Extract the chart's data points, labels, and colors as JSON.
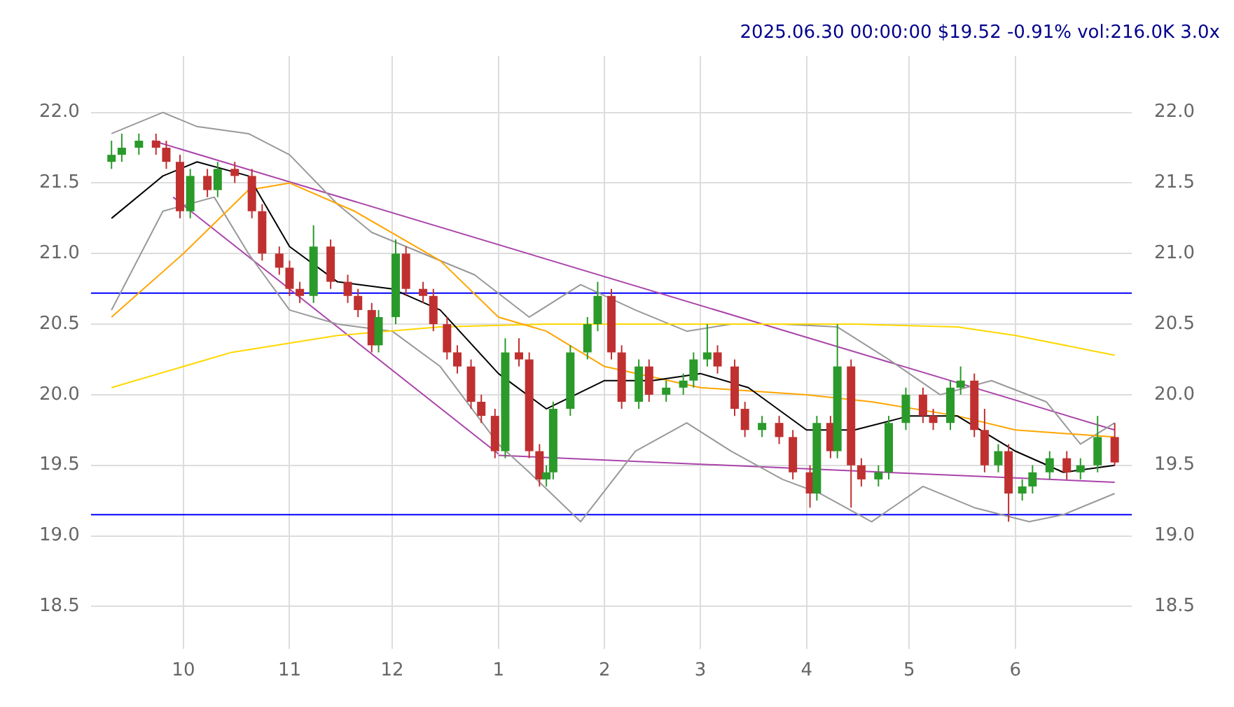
{
  "chart_data": {
    "type": "candlestick",
    "title": "2025.06.30 00:00:00 $19.52 -0.91% vol:216.0K 3.0x",
    "x": [
      "2024-09-10",
      "2024-09-13",
      "2024-09-18",
      "2024-09-23",
      "2024-09-26",
      "2024-09-30",
      "2024-10-03",
      "2024-10-08",
      "2024-10-11",
      "2024-10-16",
      "2024-10-21",
      "2024-10-24",
      "2024-10-29",
      "2024-11-01",
      "2024-11-04",
      "2024-11-08",
      "2024-11-13",
      "2024-11-18",
      "2024-11-21",
      "2024-11-25",
      "2024-11-27",
      "2024-12-02",
      "2024-12-05",
      "2024-12-10",
      "2024-12-13",
      "2024-12-17",
      "2024-12-20",
      "2024-12-24",
      "2024-12-27",
      "2024-12-31",
      "2025-01-03",
      "2025-01-07",
      "2025-01-10",
      "2025-01-13",
      "2025-01-15",
      "2025-01-17",
      "2025-01-22",
      "2025-01-27",
      "2025-01-30",
      "2025-02-03",
      "2025-02-06",
      "2025-02-11",
      "2025-02-14",
      "2025-02-19",
      "2025-02-24",
      "2025-02-27",
      "2025-03-03",
      "2025-03-06",
      "2025-03-11",
      "2025-03-14",
      "2025-03-19",
      "2025-03-24",
      "2025-03-28",
      "2025-04-02",
      "2025-04-04",
      "2025-04-08",
      "2025-04-10",
      "2025-04-14",
      "2025-04-17",
      "2025-04-22",
      "2025-04-25",
      "2025-04-30",
      "2025-05-05",
      "2025-05-08",
      "2025-05-13",
      "2025-05-16",
      "2025-05-20",
      "2025-05-23",
      "2025-05-27",
      "2025-05-30",
      "2025-06-03",
      "2025-06-06",
      "2025-06-11",
      "2025-06-16",
      "2025-06-20",
      "2025-06-25",
      "2025-06-30"
    ],
    "ohlc": [
      [
        21.65,
        21.8,
        21.6,
        21.7
      ],
      [
        21.7,
        21.85,
        21.65,
        21.75
      ],
      [
        21.75,
        21.85,
        21.7,
        21.8
      ],
      [
        21.8,
        21.85,
        21.7,
        21.75
      ],
      [
        21.75,
        21.8,
        21.6,
        21.65
      ],
      [
        21.65,
        21.7,
        21.25,
        21.3
      ],
      [
        21.3,
        21.6,
        21.25,
        21.55
      ],
      [
        21.55,
        21.6,
        21.4,
        21.45
      ],
      [
        21.45,
        21.65,
        21.4,
        21.6
      ],
      [
        21.6,
        21.65,
        21.5,
        21.55
      ],
      [
        21.55,
        21.6,
        21.25,
        21.3
      ],
      [
        21.3,
        21.35,
        20.95,
        21.0
      ],
      [
        21.0,
        21.05,
        20.85,
        20.9
      ],
      [
        20.9,
        20.95,
        20.7,
        20.75
      ],
      [
        20.75,
        20.8,
        20.65,
        20.7
      ],
      [
        20.7,
        21.2,
        20.65,
        21.05
      ],
      [
        21.05,
        21.1,
        20.75,
        20.8
      ],
      [
        20.8,
        20.85,
        20.65,
        20.7
      ],
      [
        20.7,
        20.75,
        20.55,
        20.6
      ],
      [
        20.6,
        20.65,
        20.3,
        20.35
      ],
      [
        20.35,
        20.6,
        20.3,
        20.55
      ],
      [
        20.55,
        21.1,
        20.5,
        21.0
      ],
      [
        21.0,
        21.05,
        20.7,
        20.75
      ],
      [
        20.75,
        20.8,
        20.65,
        20.7
      ],
      [
        20.7,
        20.75,
        20.45,
        20.5
      ],
      [
        20.5,
        20.55,
        20.25,
        20.3
      ],
      [
        20.3,
        20.35,
        20.15,
        20.2
      ],
      [
        20.2,
        20.25,
        19.9,
        19.95
      ],
      [
        19.95,
        20.0,
        19.8,
        19.85
      ],
      [
        19.85,
        19.9,
        19.55,
        19.6
      ],
      [
        19.6,
        20.4,
        19.55,
        20.3
      ],
      [
        20.3,
        20.4,
        20.2,
        20.25
      ],
      [
        20.25,
        20.3,
        19.55,
        19.6
      ],
      [
        19.6,
        19.65,
        19.35,
        19.4
      ],
      [
        19.4,
        19.5,
        19.35,
        19.45
      ],
      [
        19.45,
        19.95,
        19.4,
        19.9
      ],
      [
        19.9,
        20.35,
        19.85,
        20.3
      ],
      [
        20.3,
        20.55,
        20.25,
        20.5
      ],
      [
        20.5,
        20.8,
        20.45,
        20.7
      ],
      [
        20.7,
        20.75,
        20.25,
        20.3
      ],
      [
        20.3,
        20.35,
        19.9,
        19.95
      ],
      [
        19.95,
        20.25,
        19.9,
        20.2
      ],
      [
        20.2,
        20.25,
        19.95,
        20.0
      ],
      [
        20.0,
        20.1,
        19.95,
        20.05
      ],
      [
        20.05,
        20.15,
        20.0,
        20.1
      ],
      [
        20.1,
        20.3,
        20.05,
        20.25
      ],
      [
        20.25,
        20.5,
        20.2,
        20.3
      ],
      [
        20.3,
        20.35,
        20.15,
        20.2
      ],
      [
        20.2,
        20.25,
        19.85,
        19.9
      ],
      [
        19.9,
        19.95,
        19.7,
        19.75
      ],
      [
        19.75,
        19.85,
        19.7,
        19.8
      ],
      [
        19.8,
        19.85,
        19.65,
        19.7
      ],
      [
        19.7,
        19.75,
        19.4,
        19.45
      ],
      [
        19.45,
        19.5,
        19.2,
        19.3
      ],
      [
        19.3,
        19.85,
        19.25,
        19.8
      ],
      [
        19.8,
        19.85,
        19.55,
        19.6
      ],
      [
        19.6,
        20.5,
        19.55,
        20.2
      ],
      [
        20.2,
        20.25,
        19.2,
        19.5
      ],
      [
        19.5,
        19.55,
        19.35,
        19.4
      ],
      [
        19.4,
        19.5,
        19.35,
        19.45
      ],
      [
        19.45,
        19.85,
        19.4,
        19.8
      ],
      [
        19.8,
        20.05,
        19.75,
        20.0
      ],
      [
        20.0,
        20.05,
        19.8,
        19.85
      ],
      [
        19.85,
        19.9,
        19.75,
        19.8
      ],
      [
        19.8,
        20.1,
        19.75,
        20.05
      ],
      [
        20.05,
        20.2,
        20.0,
        20.1
      ],
      [
        20.1,
        20.15,
        19.7,
        19.75
      ],
      [
        19.75,
        19.9,
        19.45,
        19.5
      ],
      [
        19.5,
        19.65,
        19.45,
        19.6
      ],
      [
        19.6,
        19.65,
        19.1,
        19.3
      ],
      [
        19.3,
        19.4,
        19.25,
        19.35
      ],
      [
        19.35,
        19.5,
        19.3,
        19.45
      ],
      [
        19.45,
        19.6,
        19.4,
        19.55
      ],
      [
        19.55,
        19.6,
        19.4,
        19.45
      ],
      [
        19.45,
        19.55,
        19.4,
        19.5
      ],
      [
        19.5,
        19.85,
        19.45,
        19.7
      ],
      [
        19.7,
        19.8,
        19.5,
        19.52
      ]
    ],
    "colors": [
      "#2a9a2a",
      "#2a9a2a",
      "#2a9a2a",
      "#c03030",
      "#c03030",
      "#c03030",
      "#2a9a2a",
      "#c03030",
      "#2a9a2a",
      "#c03030",
      "#c03030",
      "#c03030",
      "#c03030",
      "#c03030",
      "#c03030",
      "#2a9a2a",
      "#c03030",
      "#c03030",
      "#c03030",
      "#c03030",
      "#2a9a2a",
      "#2a9a2a",
      "#c03030",
      "#c03030",
      "#c03030",
      "#c03030",
      "#c03030",
      "#c03030",
      "#c03030",
      "#c03030",
      "#2a9a2a",
      "#c03030",
      "#c03030",
      "#c03030",
      "#2a9a2a",
      "#2a9a2a",
      "#2a9a2a",
      "#2a9a2a",
      "#2a9a2a",
      "#c03030",
      "#c03030",
      "#2a9a2a",
      "#c03030",
      "#2a9a2a",
      "#2a9a2a",
      "#2a9a2a",
      "#2a9a2a",
      "#c03030",
      "#c03030",
      "#c03030",
      "#2a9a2a",
      "#c03030",
      "#c03030",
      "#c03030",
      "#2a9a2a",
      "#c03030",
      "#2a9a2a",
      "#c03030",
      "#c03030",
      "#2a9a2a",
      "#2a9a2a",
      "#2a9a2a",
      "#c03030",
      "#c03030",
      "#2a9a2a",
      "#2a9a2a",
      "#c03030",
      "#c03030",
      "#2a9a2a",
      "#c03030",
      "#2a9a2a",
      "#2a9a2a",
      "#2a9a2a",
      "#c03030",
      "#2a9a2a",
      "#2a9a2a",
      "#c03030"
    ],
    "series": [
      {
        "type": "line",
        "color": "#000000",
        "x": [
          "2024-09-10",
          "2024-09-25",
          "2024-10-05",
          "2024-10-20",
          "2024-11-01",
          "2024-11-15",
          "2024-12-01",
          "2024-12-15",
          "2025-01-01",
          "2025-01-15",
          "2025-02-01",
          "2025-02-15",
          "2025-03-01",
          "2025-03-15",
          "2025-04-01",
          "2025-04-15",
          "2025-05-01",
          "2025-05-15",
          "2025-06-01",
          "2025-06-15",
          "2025-06-30"
        ],
        "values": [
          21.25,
          21.55,
          21.65,
          21.55,
          21.05,
          20.8,
          20.75,
          20.6,
          20.15,
          19.9,
          20.1,
          20.1,
          20.15,
          20.05,
          19.75,
          19.75,
          19.85,
          19.85,
          19.6,
          19.45,
          19.5
        ]
      },
      {
        "type": "line",
        "color": "#ffa500",
        "x": [
          "2024-09-10",
          "2024-10-01",
          "2024-10-20",
          "2024-11-01",
          "2024-11-20",
          "2024-12-15",
          "2025-01-01",
          "2025-01-15",
          "2025-02-01",
          "2025-03-01",
          "2025-04-01",
          "2025-04-20",
          "2025-05-15",
          "2025-06-01",
          "2025-06-30"
        ],
        "values": [
          20.55,
          21.0,
          21.45,
          21.5,
          21.3,
          20.95,
          20.55,
          20.45,
          20.2,
          20.05,
          20.0,
          19.95,
          19.85,
          19.75,
          19.7
        ]
      },
      {
        "type": "line",
        "color": "#ffd700",
        "x": [
          "2024-09-10",
          "2024-10-15",
          "2024-11-15",
          "2024-12-15",
          "2025-01-15",
          "2025-03-01",
          "2025-04-15",
          "2025-05-15",
          "2025-06-01",
          "2025-06-30"
        ],
        "values": [
          20.05,
          20.3,
          20.42,
          20.48,
          20.5,
          20.5,
          20.5,
          20.48,
          20.42,
          20.28
        ]
      },
      {
        "type": "line",
        "color": "#999999",
        "x": [
          "2024-09-10",
          "2024-09-25",
          "2024-10-05",
          "2024-10-20",
          "2024-11-01",
          "2024-11-15",
          "2024-11-25",
          "2024-12-10",
          "2024-12-25",
          "2025-01-10",
          "2025-01-25",
          "2025-02-10",
          "2025-02-25",
          "2025-03-10",
          "2025-03-25",
          "2025-04-10",
          "2025-04-25",
          "2025-05-10",
          "2025-05-25",
          "2025-06-10",
          "2025-06-20",
          "2025-06-30"
        ],
        "values": [
          21.85,
          22.0,
          21.9,
          21.85,
          21.7,
          21.35,
          21.15,
          21.0,
          20.85,
          20.55,
          20.78,
          20.6,
          20.45,
          20.5,
          20.5,
          20.48,
          20.25,
          20.0,
          20.1,
          19.95,
          19.65,
          19.8
        ]
      },
      {
        "type": "line",
        "color": "#999999",
        "x": [
          "2024-09-10",
          "2024-09-25",
          "2024-10-10",
          "2024-10-20",
          "2024-11-01",
          "2024-11-15",
          "2024-12-01",
          "2024-12-15",
          "2025-01-01",
          "2025-01-10",
          "2025-01-25",
          "2025-02-10",
          "2025-02-25",
          "2025-03-10",
          "2025-03-25",
          "2025-04-05",
          "2025-04-20",
          "2025-05-05",
          "2025-05-20",
          "2025-06-05",
          "2025-06-15",
          "2025-06-30"
        ],
        "values": [
          20.6,
          21.3,
          21.4,
          21.0,
          20.6,
          20.5,
          20.45,
          20.2,
          19.65,
          19.45,
          19.1,
          19.6,
          19.8,
          19.6,
          19.4,
          19.3,
          19.1,
          19.35,
          19.2,
          19.1,
          19.15,
          19.3
        ]
      },
      {
        "type": "line",
        "color": "#aa44aa",
        "x": [
          "2024-09-22",
          "2025-06-30"
        ],
        "values": [
          21.8,
          19.75
        ]
      },
      {
        "type": "line",
        "color": "#aa44aa",
        "x": [
          "2024-09-28",
          "2025-01-01"
        ],
        "values": [
          21.4,
          19.58
        ]
      },
      {
        "type": "line",
        "color": "#aa44aa",
        "x": [
          "2025-01-01",
          "2025-06-30"
        ],
        "values": [
          19.57,
          19.38
        ]
      }
    ],
    "ref_lines": [
      {
        "axis": "y",
        "value": 20.72,
        "color": "#0000ff"
      },
      {
        "axis": "y",
        "value": 19.15,
        "color": "#0000ff"
      }
    ],
    "xlim": [
      "2024-09-04",
      "2025-07-05"
    ],
    "xticks": [
      {
        "value": "2024-10-01",
        "label": "10"
      },
      {
        "value": "2024-11-01",
        "label": "11"
      },
      {
        "value": "2024-12-01",
        "label": "12"
      },
      {
        "value": "2025-01-01",
        "label": "1"
      },
      {
        "value": "2025-02-01",
        "label": "2"
      },
      {
        "value": "2025-03-01",
        "label": "3"
      },
      {
        "value": "2025-04-01",
        "label": "4"
      },
      {
        "value": "2025-05-01",
        "label": "5"
      },
      {
        "value": "2025-06-01",
        "label": "6"
      }
    ],
    "ylim": [
      18.2,
      22.4
    ],
    "yticks": [
      {
        "value": 18.5,
        "label": "18.5"
      },
      {
        "value": 19,
        "label": "19.0"
      },
      {
        "value": 19.5,
        "label": "19.5"
      },
      {
        "value": 20,
        "label": "20.0"
      },
      {
        "value": 20.5,
        "label": "20.5"
      },
      {
        "value": 21,
        "label": "21.0"
      },
      {
        "value": 21.5,
        "label": "21.5"
      },
      {
        "value": 22,
        "label": "22.0"
      }
    ],
    "y2lim": [
      18.2,
      22.4
    ],
    "y2ticks": [
      {
        "value": 18.5,
        "label": "18.5"
      },
      {
        "value": 19,
        "label": "19.0"
      },
      {
        "value": 19.5,
        "label": "19.5"
      },
      {
        "value": 20,
        "label": "20.0"
      },
      {
        "value": 20.5,
        "label": "20.5"
      },
      {
        "value": 21,
        "label": "21.0"
      },
      {
        "value": 21.5,
        "label": "21.5"
      },
      {
        "value": 22,
        "label": "22.0"
      }
    ],
    "grid": true,
    "legend": false
  }
}
